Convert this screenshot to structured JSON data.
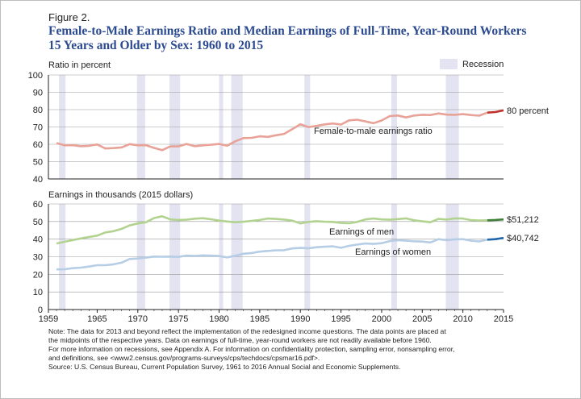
{
  "figure": {
    "label": "Figure 2.",
    "title_line1": "Female-to-Male Earnings Ratio and Median Earnings of Full-Time, Year-Round Workers",
    "title_line2": "15 Years and Older by Sex: 1960 to 2015"
  },
  "notes": {
    "line1": "Note: The data for 2013 and beyond reflect the implementation of the redesigned income questions. The data points are placed at",
    "line2": "the midpoints of the respective years. Data on earnings of full-time, year-round workers are not readily available before 1960.",
    "line3": "For more information on recessions, see Appendix A. For information on confidentiality protection, sampling error, nonsampling error,",
    "line4": "and definitions, see <www2.census.gov/programs-surveys/cps/techdocs/cpsmar16.pdf>.",
    "line5": "Source: U.S. Census Bureau, Current Population Survey, 1961 to 2016 Annual Social and Economic Supplements."
  },
  "colors": {
    "title": "#2b4a8f",
    "ratio": "#e8a298",
    "ratio_redesign": "#c0302a",
    "men": "#b2d38f",
    "men_redesign": "#3f7f3a",
    "women": "#b6cde6",
    "women_redesign": "#2166ac",
    "recession": "#e3e3f1"
  },
  "chart_data": [
    {
      "type": "line",
      "ylabel": "Ratio in percent",
      "ylim": [
        40,
        100
      ],
      "yticks": [
        40,
        50,
        60,
        70,
        80,
        90,
        100
      ],
      "xlim": [
        1959,
        2015
      ],
      "legend": "Recession",
      "recessions": [
        [
          1960.3,
          1961.1
        ],
        [
          1969.9,
          1970.9
        ],
        [
          1973.9,
          1975.2
        ],
        [
          1980.0,
          1980.5
        ],
        [
          1981.5,
          1982.9
        ],
        [
          1990.5,
          1991.2
        ],
        [
          2001.2,
          2001.9
        ],
        [
          2007.9,
          2009.5
        ]
      ],
      "series": [
        {
          "name": "Female-to-male earnings ratio",
          "label_value": "80 percent",
          "x": [
            1960,
            1961,
            1962,
            1963,
            1964,
            1965,
            1966,
            1967,
            1968,
            1969,
            1970,
            1971,
            1972,
            1973,
            1974,
            1975,
            1976,
            1977,
            1978,
            1979,
            1980,
            1981,
            1982,
            1983,
            1984,
            1985,
            1986,
            1987,
            1988,
            1989,
            1990,
            1991,
            1992,
            1993,
            1994,
            1995,
            1996,
            1997,
            1998,
            1999,
            2000,
            2001,
            2002,
            2003,
            2004,
            2005,
            2006,
            2007,
            2008,
            2009,
            2010,
            2011,
            2012,
            2013,
            2014,
            2015
          ],
          "y": [
            60.7,
            59.4,
            59.5,
            58.9,
            59.1,
            59.9,
            57.6,
            57.8,
            58.2,
            60.1,
            59.4,
            59.5,
            57.9,
            56.6,
            58.8,
            58.8,
            60.2,
            58.9,
            59.4,
            59.7,
            60.2,
            59.2,
            61.7,
            63.6,
            63.7,
            64.6,
            64.3,
            65.2,
            66.0,
            68.7,
            71.6,
            69.9,
            70.6,
            71.5,
            72.0,
            71.4,
            73.8,
            74.2,
            73.2,
            72.2,
            73.7,
            76.3,
            76.6,
            75.5,
            76.6,
            77.0,
            76.9,
            77.8,
            77.1,
            77.0,
            77.4,
            76.9,
            76.5,
            78.3,
            78.6,
            79.6
          ],
          "redesign_from": 2013
        }
      ]
    },
    {
      "type": "line",
      "ylabel": "Earnings in thousands (2015 dollars)",
      "ylim": [
        0,
        60
      ],
      "yticks": [
        0,
        10,
        20,
        30,
        40,
        50,
        60
      ],
      "xlim": [
        1959,
        2015
      ],
      "xticks": [
        1959,
        1965,
        1970,
        1975,
        1980,
        1985,
        1990,
        1995,
        2000,
        2005,
        2010,
        2015
      ],
      "recessions": [
        [
          1960.3,
          1961.1
        ],
        [
          1969.9,
          1970.9
        ],
        [
          1973.9,
          1975.2
        ],
        [
          1980.0,
          1980.5
        ],
        [
          1981.5,
          1982.9
        ],
        [
          1990.5,
          1991.2
        ],
        [
          2001.2,
          2001.9
        ],
        [
          2007.9,
          2009.5
        ]
      ],
      "series": [
        {
          "name": "Earnings of men",
          "label_value": "$51,212",
          "x": [
            1960,
            1961,
            1962,
            1963,
            1964,
            1965,
            1966,
            1967,
            1968,
            1969,
            1970,
            1971,
            1972,
            1973,
            1974,
            1975,
            1976,
            1977,
            1978,
            1979,
            1980,
            1981,
            1982,
            1983,
            1984,
            1985,
            1986,
            1987,
            1988,
            1989,
            1990,
            1991,
            1992,
            1993,
            1994,
            1995,
            1996,
            1997,
            1998,
            1999,
            2000,
            2001,
            2002,
            2003,
            2004,
            2005,
            2006,
            2007,
            2008,
            2009,
            2010,
            2011,
            2012,
            2013,
            2014,
            2015
          ],
          "y": [
            37.5,
            38.5,
            39.5,
            40.4,
            41.2,
            42.0,
            43.8,
            44.5,
            45.8,
            47.8,
            48.9,
            49.6,
            52.0,
            53.0,
            51.2,
            50.9,
            51.0,
            51.6,
            51.9,
            51.3,
            50.5,
            50.0,
            49.6,
            49.9,
            50.4,
            50.9,
            51.7,
            51.5,
            51.1,
            50.5,
            48.9,
            49.8,
            50.2,
            49.9,
            49.8,
            49.2,
            49.0,
            49.8,
            51.2,
            51.7,
            51.2,
            51.0,
            51.4,
            51.8,
            50.7,
            50.1,
            49.6,
            51.5,
            51.1,
            51.8,
            51.7,
            50.8,
            50.6,
            50.7,
            50.9,
            51.2
          ],
          "redesign_from": 2013
        },
        {
          "name": "Earnings of women",
          "label_value": "$40,742",
          "x": [
            1960,
            1961,
            1962,
            1963,
            1964,
            1965,
            1966,
            1967,
            1968,
            1969,
            1970,
            1971,
            1972,
            1973,
            1974,
            1975,
            1976,
            1977,
            1978,
            1979,
            1980,
            1981,
            1982,
            1983,
            1984,
            1985,
            1986,
            1987,
            1988,
            1989,
            1990,
            1991,
            1992,
            1993,
            1994,
            1995,
            1996,
            1997,
            1998,
            1999,
            2000,
            2001,
            2002,
            2003,
            2004,
            2005,
            2006,
            2007,
            2008,
            2009,
            2010,
            2011,
            2012,
            2013,
            2014,
            2015
          ],
          "y": [
            22.8,
            22.9,
            23.5,
            23.8,
            24.4,
            25.2,
            25.2,
            25.7,
            26.6,
            28.7,
            29.0,
            29.5,
            30.1,
            30.0,
            30.1,
            29.9,
            30.7,
            30.4,
            30.8,
            30.6,
            30.4,
            29.6,
            30.6,
            31.7,
            32.1,
            32.9,
            33.3,
            33.6,
            33.7,
            34.7,
            35.0,
            34.8,
            35.4,
            35.7,
            35.9,
            35.1,
            36.2,
            36.9,
            37.5,
            37.3,
            37.7,
            38.9,
            39.4,
            39.1,
            38.8,
            38.6,
            38.1,
            40.0,
            39.4,
            39.9,
            40.0,
            39.1,
            38.7,
            39.7,
            40.0,
            40.7
          ],
          "redesign_from": 2013
        }
      ]
    }
  ]
}
